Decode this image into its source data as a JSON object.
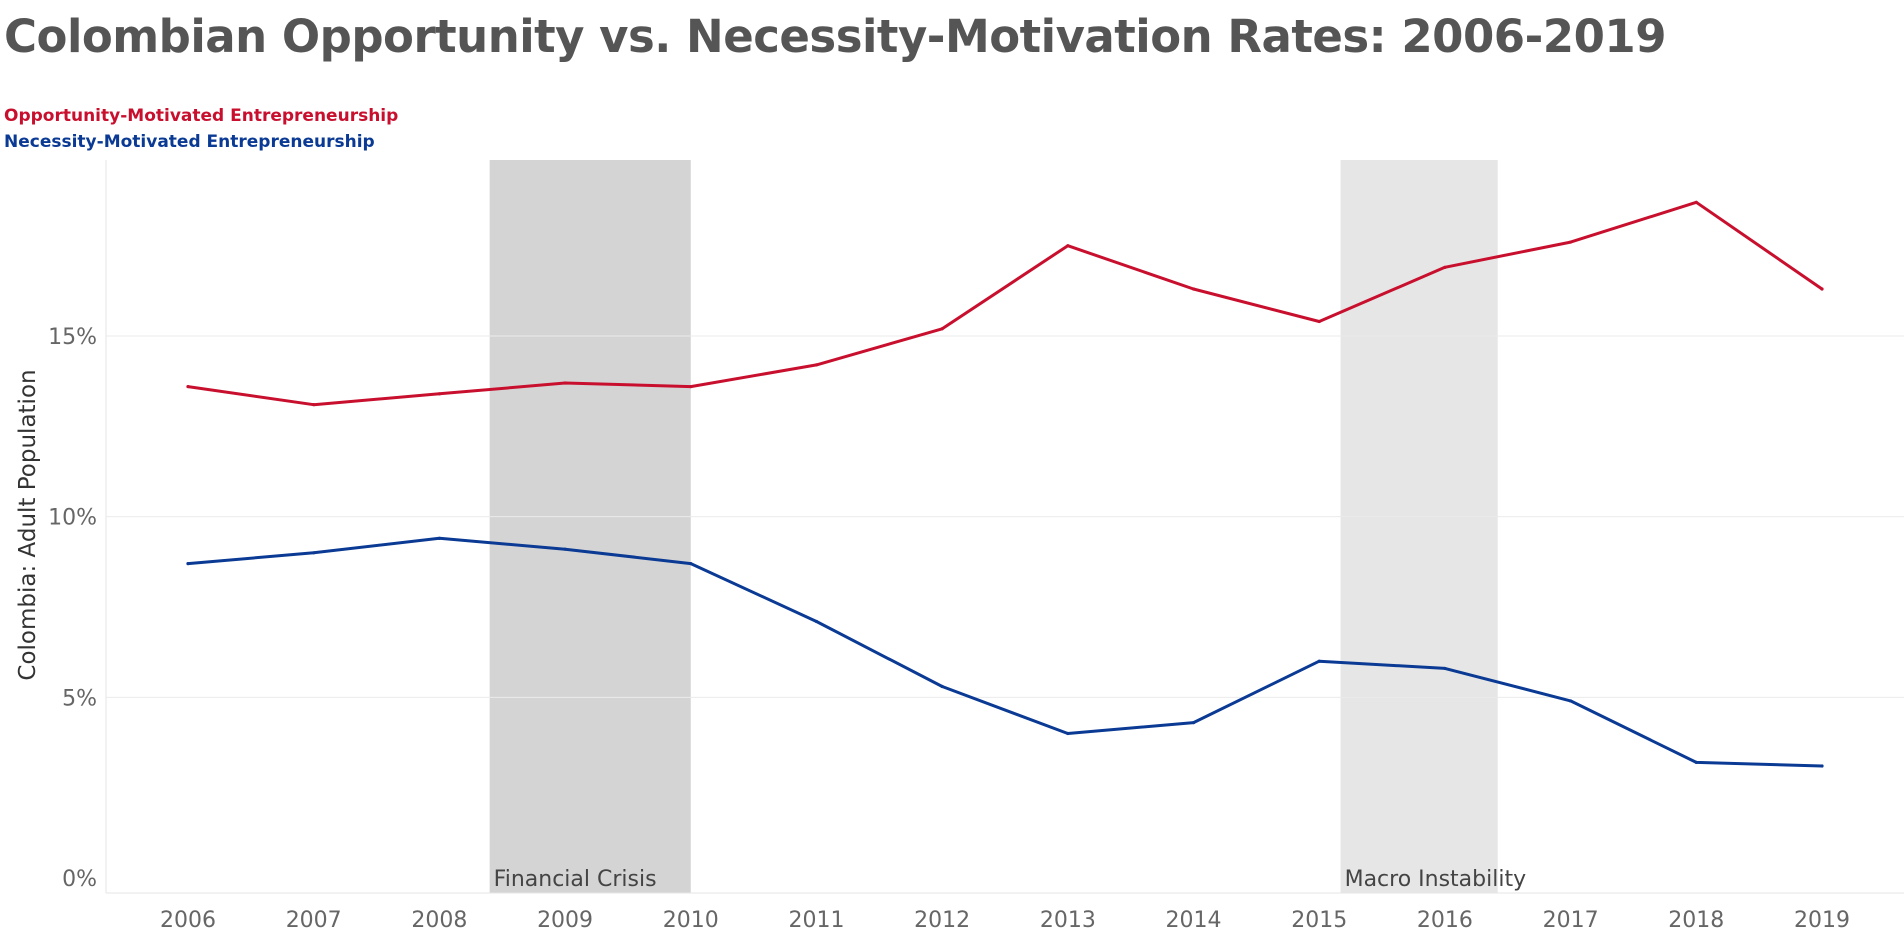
{
  "chart_data": {
    "type": "line",
    "title": "Colombian Opportunity vs. Necessity-Motivation Rates: 2006-2019",
    "ylabel": "Colombia: Adult Population",
    "xlabel": "",
    "x": [
      2006,
      2007,
      2008,
      2009,
      2010,
      2011,
      2012,
      2013,
      2014,
      2015,
      2016,
      2017,
      2018,
      2019
    ],
    "ylim": [
      0,
      20
    ],
    "yticks": [
      0,
      5,
      10,
      15
    ],
    "ytick_labels": [
      "0%",
      "5%",
      "10%",
      "15%"
    ],
    "grid": "horizontal",
    "legend_position": "top-left",
    "series": [
      {
        "name": "Opportunity-Motivated Entrepreneurship",
        "color": "#C8102E",
        "values": [
          13.6,
          13.1,
          13.4,
          13.7,
          13.6,
          14.2,
          15.2,
          17.5,
          16.3,
          15.4,
          16.9,
          17.6,
          18.7,
          16.3
        ]
      },
      {
        "name": "Necessity-Motivated Entrepreneurship",
        "color": "#0A3A94",
        "values": [
          8.7,
          9.0,
          9.4,
          9.1,
          8.7,
          7.1,
          5.3,
          4.0,
          4.3,
          6.0,
          5.8,
          4.9,
          3.2,
          3.1
        ]
      }
    ],
    "bands": [
      {
        "label": "Financial Crisis",
        "x_start": 2008.4,
        "x_end": 2010.0,
        "color": "#D4D4D4"
      },
      {
        "label": "Macro Instability",
        "x_start": 2015.17,
        "x_end": 2016.42,
        "color": "#E6E6E6"
      }
    ]
  }
}
